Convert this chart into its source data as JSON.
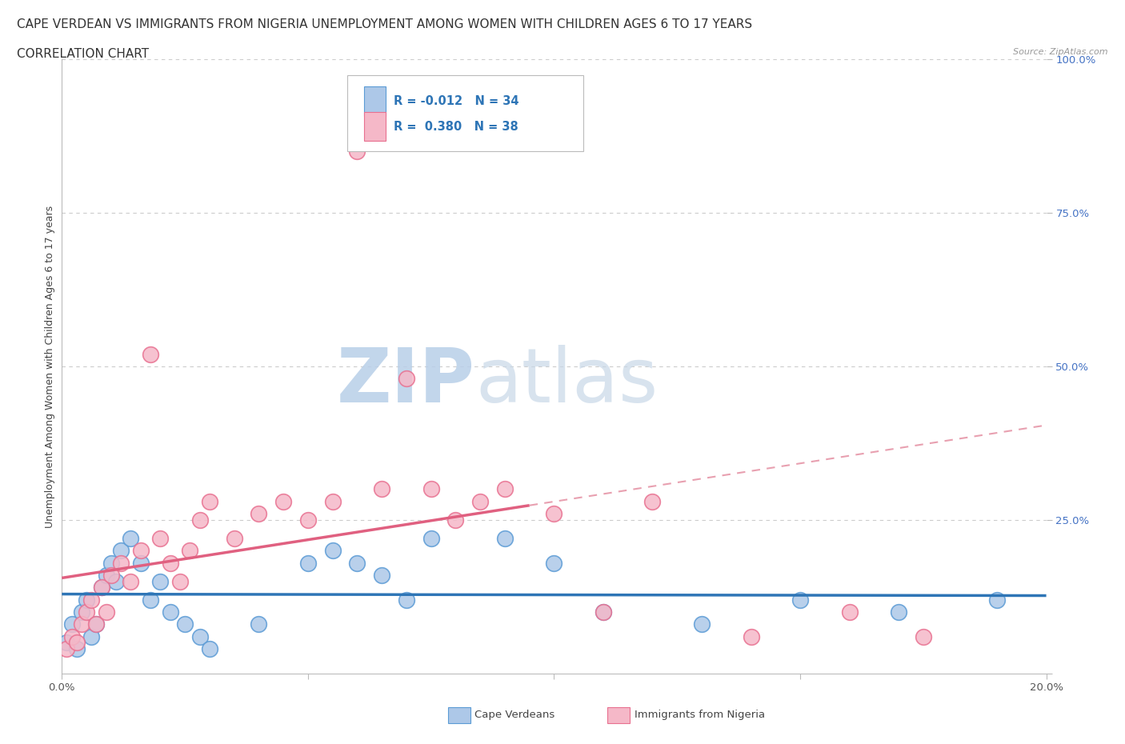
{
  "title_line1": "CAPE VERDEAN VS IMMIGRANTS FROM NIGERIA UNEMPLOYMENT AMONG WOMEN WITH CHILDREN AGES 6 TO 17 YEARS",
  "title_line2": "CORRELATION CHART",
  "source_text": "Source: ZipAtlas.com",
  "ylabel": "Unemployment Among Women with Children Ages 6 to 17 years",
  "xlim": [
    0.0,
    0.2
  ],
  "ylim": [
    0.0,
    1.0
  ],
  "blue_color": "#adc8e8",
  "pink_color": "#f5b8c8",
  "blue_edge": "#5b9bd5",
  "pink_edge": "#e87090",
  "trendline_blue_color": "#2e75b6",
  "trendline_pink_color": "#e06080",
  "trendline_pink_dash_color": "#e8a0b0",
  "watermark_zip": "ZIP",
  "watermark_atlas": "atlas",
  "watermark_color": "#d0dff0",
  "background_color": "#ffffff",
  "grid_color": "#cccccc",
  "title_fontsize": 11,
  "axis_label_fontsize": 9,
  "tick_fontsize": 9.5,
  "blue_x": [
    0.001,
    0.002,
    0.003,
    0.004,
    0.005,
    0.006,
    0.007,
    0.008,
    0.009,
    0.01,
    0.011,
    0.012,
    0.014,
    0.016,
    0.018,
    0.02,
    0.022,
    0.025,
    0.028,
    0.03,
    0.04,
    0.05,
    0.055,
    0.06,
    0.065,
    0.07,
    0.075,
    0.09,
    0.1,
    0.11,
    0.13,
    0.15,
    0.17,
    0.19
  ],
  "blue_y": [
    0.05,
    0.08,
    0.04,
    0.1,
    0.12,
    0.06,
    0.08,
    0.14,
    0.16,
    0.18,
    0.15,
    0.2,
    0.22,
    0.18,
    0.12,
    0.15,
    0.1,
    0.08,
    0.06,
    0.04,
    0.08,
    0.18,
    0.2,
    0.18,
    0.16,
    0.12,
    0.22,
    0.22,
    0.18,
    0.1,
    0.08,
    0.12,
    0.1,
    0.12
  ],
  "pink_x": [
    0.001,
    0.002,
    0.003,
    0.004,
    0.005,
    0.006,
    0.007,
    0.008,
    0.009,
    0.01,
    0.012,
    0.014,
    0.016,
    0.018,
    0.02,
    0.022,
    0.024,
    0.026,
    0.028,
    0.03,
    0.035,
    0.04,
    0.045,
    0.05,
    0.055,
    0.06,
    0.065,
    0.07,
    0.075,
    0.08,
    0.085,
    0.09,
    0.1,
    0.11,
    0.12,
    0.14,
    0.16,
    0.175
  ],
  "pink_y": [
    0.04,
    0.06,
    0.05,
    0.08,
    0.1,
    0.12,
    0.08,
    0.14,
    0.1,
    0.16,
    0.18,
    0.15,
    0.2,
    0.52,
    0.22,
    0.18,
    0.15,
    0.2,
    0.25,
    0.28,
    0.22,
    0.26,
    0.28,
    0.25,
    0.28,
    0.85,
    0.3,
    0.48,
    0.3,
    0.25,
    0.28,
    0.3,
    0.26,
    0.1,
    0.28,
    0.06,
    0.1,
    0.06
  ]
}
